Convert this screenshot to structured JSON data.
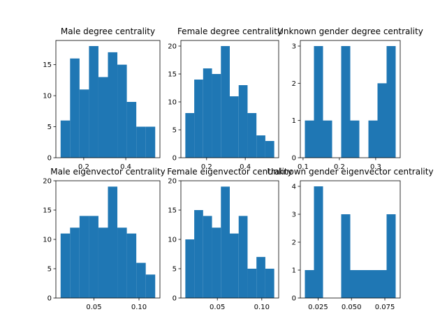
{
  "chart_data": [
    {
      "type": "histogram",
      "title": "Male degree centrality",
      "bar_color": "#1f77b4",
      "bin_edges": [
        0.09,
        0.135,
        0.18,
        0.225,
        0.27,
        0.315,
        0.36,
        0.405,
        0.45,
        0.495,
        0.54
      ],
      "counts": [
        6,
        16,
        11,
        18,
        13,
        17,
        15,
        9,
        5,
        5
      ],
      "xlim": [
        0.0675,
        0.5625
      ],
      "ylim": [
        0,
        18.9
      ],
      "xticks": [
        0.2,
        0.4
      ],
      "xtick_labels": [
        "0.2",
        "0.4"
      ],
      "yticks": [
        0,
        5,
        10,
        15
      ],
      "ytick_labels": [
        "0",
        "5",
        "10",
        "15"
      ]
    },
    {
      "type": "histogram",
      "title": "Female degree centrality",
      "bar_color": "#1f77b4",
      "bin_edges": [
        0.09,
        0.136,
        0.182,
        0.228,
        0.274,
        0.32,
        0.366,
        0.412,
        0.458,
        0.504,
        0.55
      ],
      "counts": [
        8,
        14,
        16,
        15,
        20,
        11,
        13,
        8,
        4,
        3
      ],
      "xlim": [
        0.067,
        0.573
      ],
      "ylim": [
        0,
        21
      ],
      "xticks": [
        0.2,
        0.4
      ],
      "xtick_labels": [
        "0.2",
        "0.4"
      ],
      "yticks": [
        0,
        5,
        10,
        15,
        20
      ],
      "ytick_labels": [
        "0",
        "5",
        "10",
        "15",
        "20"
      ]
    },
    {
      "type": "histogram",
      "title": "Unknown gender degree centrality",
      "bar_color": "#1f77b4",
      "bin_edges": [
        0.105,
        0.13,
        0.155,
        0.18,
        0.205,
        0.23,
        0.255,
        0.28,
        0.305,
        0.33,
        0.355
      ],
      "counts": [
        1,
        3,
        1,
        0,
        3,
        1,
        0,
        1,
        2,
        3
      ],
      "xlim": [
        0.0925,
        0.3675
      ],
      "ylim": [
        0,
        3.15
      ],
      "xticks": [
        0.1,
        0.2,
        0.3
      ],
      "xtick_labels": [
        "0.1",
        "0.2",
        "0.3"
      ],
      "yticks": [
        0,
        1,
        2,
        3
      ],
      "ytick_labels": [
        "0",
        "1",
        "2",
        "3"
      ]
    },
    {
      "type": "histogram",
      "title": "Male eigenvector centrality",
      "bar_color": "#1f77b4",
      "bin_edges": [
        0.013,
        0.0235,
        0.034,
        0.0445,
        0.055,
        0.0655,
        0.076,
        0.0865,
        0.097,
        0.1075,
        0.118
      ],
      "counts": [
        11,
        12,
        14,
        14,
        12,
        19,
        12,
        11,
        6,
        4
      ],
      "xlim": [
        0.00775,
        0.12325
      ],
      "ylim": [
        0,
        20
      ],
      "xticks": [
        0.05,
        0.1
      ],
      "xtick_labels": [
        "0.05",
        "0.10"
      ],
      "yticks": [
        0,
        5,
        10,
        15,
        20
      ],
      "ytick_labels": [
        "0",
        "5",
        "10",
        "15",
        "20"
      ]
    },
    {
      "type": "histogram",
      "title": "Female eigenvector centrality",
      "bar_color": "#1f77b4",
      "bin_edges": [
        0.014,
        0.024,
        0.034,
        0.044,
        0.054,
        0.064,
        0.074,
        0.084,
        0.094,
        0.104,
        0.114
      ],
      "counts": [
        10,
        15,
        14,
        12,
        19,
        11,
        14,
        5,
        7,
        5
      ],
      "xlim": [
        0.009,
        0.119
      ],
      "ylim": [
        0,
        20
      ],
      "xticks": [
        0.05,
        0.1
      ],
      "xtick_labels": [
        "0.05",
        "0.10"
      ],
      "yticks": [
        0,
        5,
        10,
        15,
        20
      ],
      "ytick_labels": [
        "0",
        "5",
        "10",
        "15",
        "20"
      ]
    },
    {
      "type": "histogram",
      "title": "Unknown gender eigenvector centrality",
      "bar_color": "#1f77b4",
      "bin_edges": [
        0.0151,
        0.0219,
        0.0287,
        0.0355,
        0.0423,
        0.0491,
        0.0559,
        0.0627,
        0.0695,
        0.0763,
        0.0831
      ],
      "counts": [
        1,
        4,
        0,
        0,
        3,
        1,
        1,
        1,
        1,
        3
      ],
      "xlim": [
        0.0117,
        0.0865
      ],
      "ylim": [
        0,
        4.2
      ],
      "xticks": [
        0.025,
        0.05,
        0.075
      ],
      "xtick_labels": [
        "0.025",
        "0.050",
        "0.075"
      ],
      "yticks": [
        0,
        1,
        2,
        3,
        4
      ],
      "ytick_labels": [
        "0",
        "1",
        "2",
        "3",
        "4"
      ]
    }
  ]
}
